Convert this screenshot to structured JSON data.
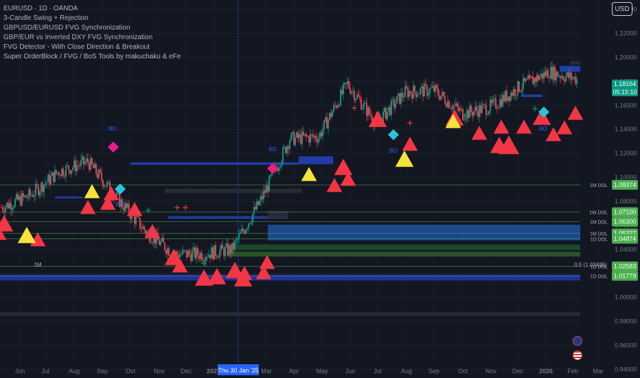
{
  "legend": {
    "symbol": "EURUSD · 1D · OANDA",
    "indicators": [
      "3-Candle Swing + Rejection",
      "GBPUSD/EURUSD FVG Synchronization",
      "GBP/EUR vs Inverted DXY FVG Synchronization",
      "FVG Detector - With Close Direction & Breakout",
      "Super OrderBlock / FVG / BoS Tools by makuchaku & eFe"
    ]
  },
  "toolbar": {
    "currency_label": "USD"
  },
  "current_price": {
    "value": "1.18164",
    "countdown": "05:15:10"
  },
  "crosshair": {
    "date_label": "Thu 30 Jan '25"
  },
  "colors": {
    "background": "#131722",
    "up": "#089981",
    "down": "#f23645",
    "order_block": "#2962ff",
    "level_line": "#4caf50",
    "triangle_red": "#f23645",
    "triangle_yellow": "#f5e33b",
    "diamond_pink": "#e91e8c",
    "diamond_teal": "#26c6da"
  },
  "chart_data": {
    "type": "candlestick",
    "title": "EURUSD · 1D · OANDA",
    "y_axis": {
      "ticks": [
        "1.24000",
        "1.22000",
        "1.20000",
        "1.18000",
        "1.16000",
        "1.14000",
        "1.12000",
        "1.10000",
        "1.08000",
        "1.06000",
        "1.04000",
        "1.02000",
        "1.00000",
        "0.98000",
        "0.96000",
        "0.94000"
      ],
      "range": [
        0.935,
        1.245
      ]
    },
    "x_axis": {
      "ticks": [
        "Jun",
        "Jul",
        "Aug",
        "Sep",
        "Oct",
        "Nov",
        "Dec",
        "2025",
        "Feb",
        "Mar",
        "Apr",
        "May",
        "Jun",
        "Jul",
        "Aug",
        "Sep",
        "Oct",
        "Nov",
        "Dec",
        "2026",
        "Feb",
        "Mar"
      ]
    },
    "price_path_monthly": [
      {
        "month": "Jun 2024",
        "close": 1.075
      },
      {
        "month": "Jul 2024",
        "close": 1.085
      },
      {
        "month": "Aug 2024",
        "close": 1.105
      },
      {
        "month": "Sep 2024",
        "close": 1.113
      },
      {
        "month": "Oct 2024",
        "close": 1.083
      },
      {
        "month": "Nov 2024",
        "close": 1.055
      },
      {
        "month": "Dec 2024",
        "close": 1.036
      },
      {
        "month": "Jan 2025",
        "close": 1.036
      },
      {
        "month": "Feb 2025",
        "close": 1.04
      },
      {
        "month": "Mar 2025",
        "close": 1.081
      },
      {
        "month": "Apr 2025",
        "close": 1.132
      },
      {
        "month": "May 2025",
        "close": 1.134
      },
      {
        "month": "Jun 2025",
        "close": 1.178
      },
      {
        "month": "Jul 2025",
        "close": 1.145
      },
      {
        "month": "Aug 2025",
        "close": 1.171
      },
      {
        "month": "Sep 2025",
        "close": 1.173
      },
      {
        "month": "Oct 2025",
        "close": 1.153
      },
      {
        "month": "Nov 2025",
        "close": 1.159
      },
      {
        "month": "Dec 2025",
        "close": 1.176
      },
      {
        "month": "Jan 2026",
        "close": 1.188
      },
      {
        "month": "Feb 2026",
        "close": 1.18164
      }
    ],
    "levels": [
      {
        "label": "1M DOL",
        "price": "1.09374",
        "value": 1.09374
      },
      {
        "label": "1W DOL",
        "price": "1.07100",
        "value": 1.071
      },
      {
        "label": "1M DOL",
        "price": "1.06300",
        "value": 1.063
      },
      {
        "label": "1M DOL",
        "price": "1.05327",
        "value": 1.05327
      },
      {
        "label": "1D DOL",
        "price": "1.04874",
        "value": 1.04874
      },
      {
        "label": "1D DOL",
        "price": "1.02583",
        "value": 1.02583
      },
      {
        "label": "1D DOL",
        "price": "1.01779",
        "value": 1.01779
      }
    ],
    "annotations": [
      {
        "text": "0.5 (1.02435)",
        "value": 1.02435
      },
      {
        "text": "1M",
        "value": 1.0245
      },
      {
        "text": "BO",
        "marker": "breakout"
      }
    ],
    "order_blocks": [
      {
        "from": "Sep 2024",
        "to": "Mar 2025",
        "top": 1.1125,
        "bottom": 1.1105
      },
      {
        "from": "Feb 2025",
        "to": "Mar 2026",
        "top": 1.0605,
        "bottom": 1.0475
      },
      {
        "from": "May 2024",
        "to": "Mar 2026",
        "top": 1.0188,
        "bottom": 1.014
      },
      {
        "from": "Apr 2025",
        "to": "May 2025",
        "top": 1.1175,
        "bottom": 1.111
      }
    ],
    "grid": true,
    "legend_position": "top-left"
  }
}
